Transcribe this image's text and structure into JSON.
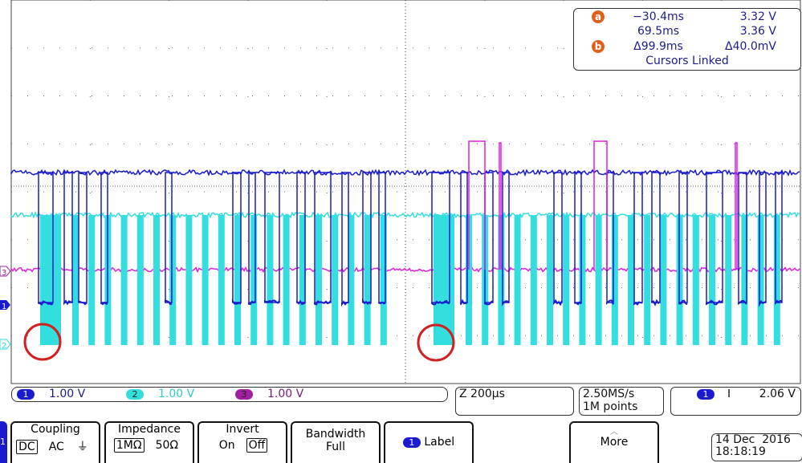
{
  "cursors": {
    "a_label": "a",
    "b_label": "b",
    "a_time": "−30.4ms",
    "a_volt": "3.32 V",
    "b_time": "69.5ms",
    "b_volt": "3.36 V",
    "delta_time": "Δ99.9ms",
    "delta_volt": "Δ40.0mV",
    "status": "Cursors Linked"
  },
  "channels": [
    {
      "num": "1",
      "scale": "1.00 V",
      "color": "#1a1ad0"
    },
    {
      "num": "2",
      "scale": "1.00 V",
      "color": "#33dede"
    },
    {
      "num": "3",
      "scale": "1.00 V",
      "color": "#a020a0"
    }
  ],
  "markers": {
    "ch1": "1",
    "ch2": "2",
    "ch3": "3"
  },
  "timebase": "Z 200µs",
  "acquisition": {
    "rate": "2.50MS/s",
    "points": "1M points"
  },
  "trigger": {
    "source": "1",
    "slope": "ⵏ",
    "level": "2.06 V"
  },
  "menu": {
    "side_tab": "1",
    "coupling": {
      "title": "Coupling",
      "options": [
        "DC",
        "AC",
        "⏚"
      ]
    },
    "impedance": {
      "title": "Impedance",
      "options": [
        "1MΩ",
        "50Ω"
      ]
    },
    "invert": {
      "title": "Invert",
      "options": [
        "On",
        "Off"
      ]
    },
    "bandwidth": {
      "title": "Bandwidth",
      "value": "Full"
    },
    "label": {
      "chip": "1",
      "text": "Label"
    },
    "more": "More"
  },
  "datetime": {
    "date": "14 Dec  2016",
    "time": "18:18:19"
  }
}
